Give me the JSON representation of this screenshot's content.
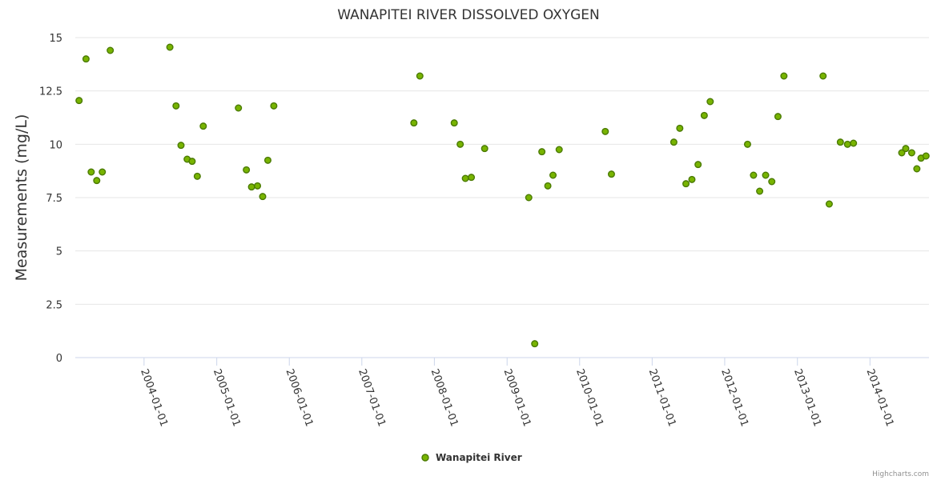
{
  "chart_data": {
    "type": "scatter",
    "title": "WANAPITEI RIVER DISSOLVED OXYGEN",
    "xlabel": "",
    "ylabel": "Measurements (mg/L)",
    "ylim": [
      0,
      15
    ],
    "yticks": [
      "0",
      "2.5",
      "5",
      "7.5",
      "10",
      "12.5",
      "15"
    ],
    "xlim": [
      "2003-01-20",
      "2014-10-25"
    ],
    "xticks": [
      "2004-01-01",
      "2005-01-01",
      "2006-01-01",
      "2007-01-01",
      "2008-01-01",
      "2009-01-01",
      "2010-01-01",
      "2011-01-01",
      "2012-01-01",
      "2013-01-01",
      "2014-01-01"
    ],
    "grid": "horizontal",
    "legend_position": "bottom-center",
    "series": [
      {
        "name": "Wanapitei River",
        "color": "#78b400",
        "edge_color": "#4a7a00",
        "points": [
          [
            "2003-02-08",
            12.05
          ],
          [
            "2003-03-15",
            14.0
          ],
          [
            "2003-04-10",
            8.7
          ],
          [
            "2003-05-08",
            8.3
          ],
          [
            "2003-06-05",
            8.7
          ],
          [
            "2003-07-15",
            14.4
          ],
          [
            "2004-05-10",
            14.55
          ],
          [
            "2004-06-10",
            11.8
          ],
          [
            "2004-07-05",
            9.95
          ],
          [
            "2004-08-05",
            9.3
          ],
          [
            "2004-08-30",
            9.2
          ],
          [
            "2004-09-25",
            8.5
          ],
          [
            "2004-10-25",
            10.85
          ],
          [
            "2005-04-20",
            11.7
          ],
          [
            "2005-05-30",
            8.8
          ],
          [
            "2005-06-25",
            8.0
          ],
          [
            "2005-07-25",
            8.05
          ],
          [
            "2005-08-20",
            7.55
          ],
          [
            "2005-09-15",
            9.25
          ],
          [
            "2005-10-15",
            11.8
          ],
          [
            "2007-09-20",
            11.0
          ],
          [
            "2007-10-20",
            13.2
          ],
          [
            "2008-04-10",
            11.0
          ],
          [
            "2008-05-10",
            10.0
          ],
          [
            "2008-06-05",
            8.4
          ],
          [
            "2008-07-05",
            8.45
          ],
          [
            "2008-09-10",
            9.8
          ],
          [
            "2009-04-20",
            7.5
          ],
          [
            "2009-05-20",
            0.65
          ],
          [
            "2009-06-25",
            9.65
          ],
          [
            "2009-07-25",
            8.05
          ],
          [
            "2009-08-20",
            8.55
          ],
          [
            "2009-09-20",
            9.75
          ],
          [
            "2010-05-10",
            10.6
          ],
          [
            "2010-06-10",
            8.6
          ],
          [
            "2011-04-20",
            10.1
          ],
          [
            "2011-05-20",
            10.75
          ],
          [
            "2011-06-20",
            8.15
          ],
          [
            "2011-07-20",
            8.35
          ],
          [
            "2011-08-20",
            9.05
          ],
          [
            "2011-09-20",
            11.35
          ],
          [
            "2011-10-20",
            12.0
          ],
          [
            "2012-04-25",
            10.0
          ],
          [
            "2012-05-25",
            8.55
          ],
          [
            "2012-06-25",
            7.8
          ],
          [
            "2012-07-25",
            8.55
          ],
          [
            "2012-08-25",
            8.25
          ],
          [
            "2012-09-25",
            11.3
          ],
          [
            "2012-10-25",
            13.2
          ],
          [
            "2013-05-10",
            13.2
          ],
          [
            "2013-06-10",
            7.2
          ],
          [
            "2013-08-05",
            10.1
          ],
          [
            "2013-09-10",
            10.0
          ],
          [
            "2013-10-10",
            10.05
          ],
          [
            "2014-06-10",
            9.6
          ],
          [
            "2014-06-30",
            9.8
          ],
          [
            "2014-07-30",
            9.6
          ],
          [
            "2014-08-25",
            8.85
          ],
          [
            "2014-09-15",
            9.35
          ],
          [
            "2014-10-10",
            9.45
          ]
        ]
      }
    ]
  },
  "credits": "Highcharts.com",
  "colors": {
    "grid": "#e6e6e6",
    "axis": "#ccd6eb",
    "text": "#333333"
  }
}
